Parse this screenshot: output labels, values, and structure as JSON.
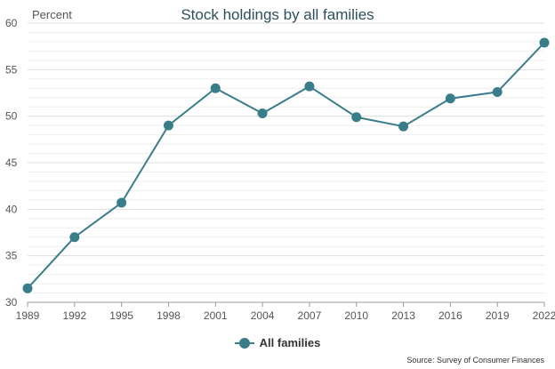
{
  "chart_data": {
    "type": "line",
    "title": "Stock holdings by all families",
    "ylabel": "Percent",
    "xlabel": "",
    "categories": [
      "1989",
      "1992",
      "1995",
      "1998",
      "2001",
      "2004",
      "2007",
      "2010",
      "2013",
      "2016",
      "2019",
      "2022"
    ],
    "series": [
      {
        "name": "All families",
        "values": [
          31.5,
          37.0,
          40.7,
          49.0,
          53.0,
          50.3,
          53.2,
          49.9,
          48.9,
          51.9,
          52.6,
          57.9
        ],
        "color": "#3a7d8a"
      }
    ],
    "ylim": [
      30,
      60
    ],
    "yticks": [
      30,
      35,
      40,
      45,
      50,
      55,
      60
    ],
    "grid": true,
    "legend": "bottom-center",
    "source": "Source: Survey of Consumer Finances"
  }
}
